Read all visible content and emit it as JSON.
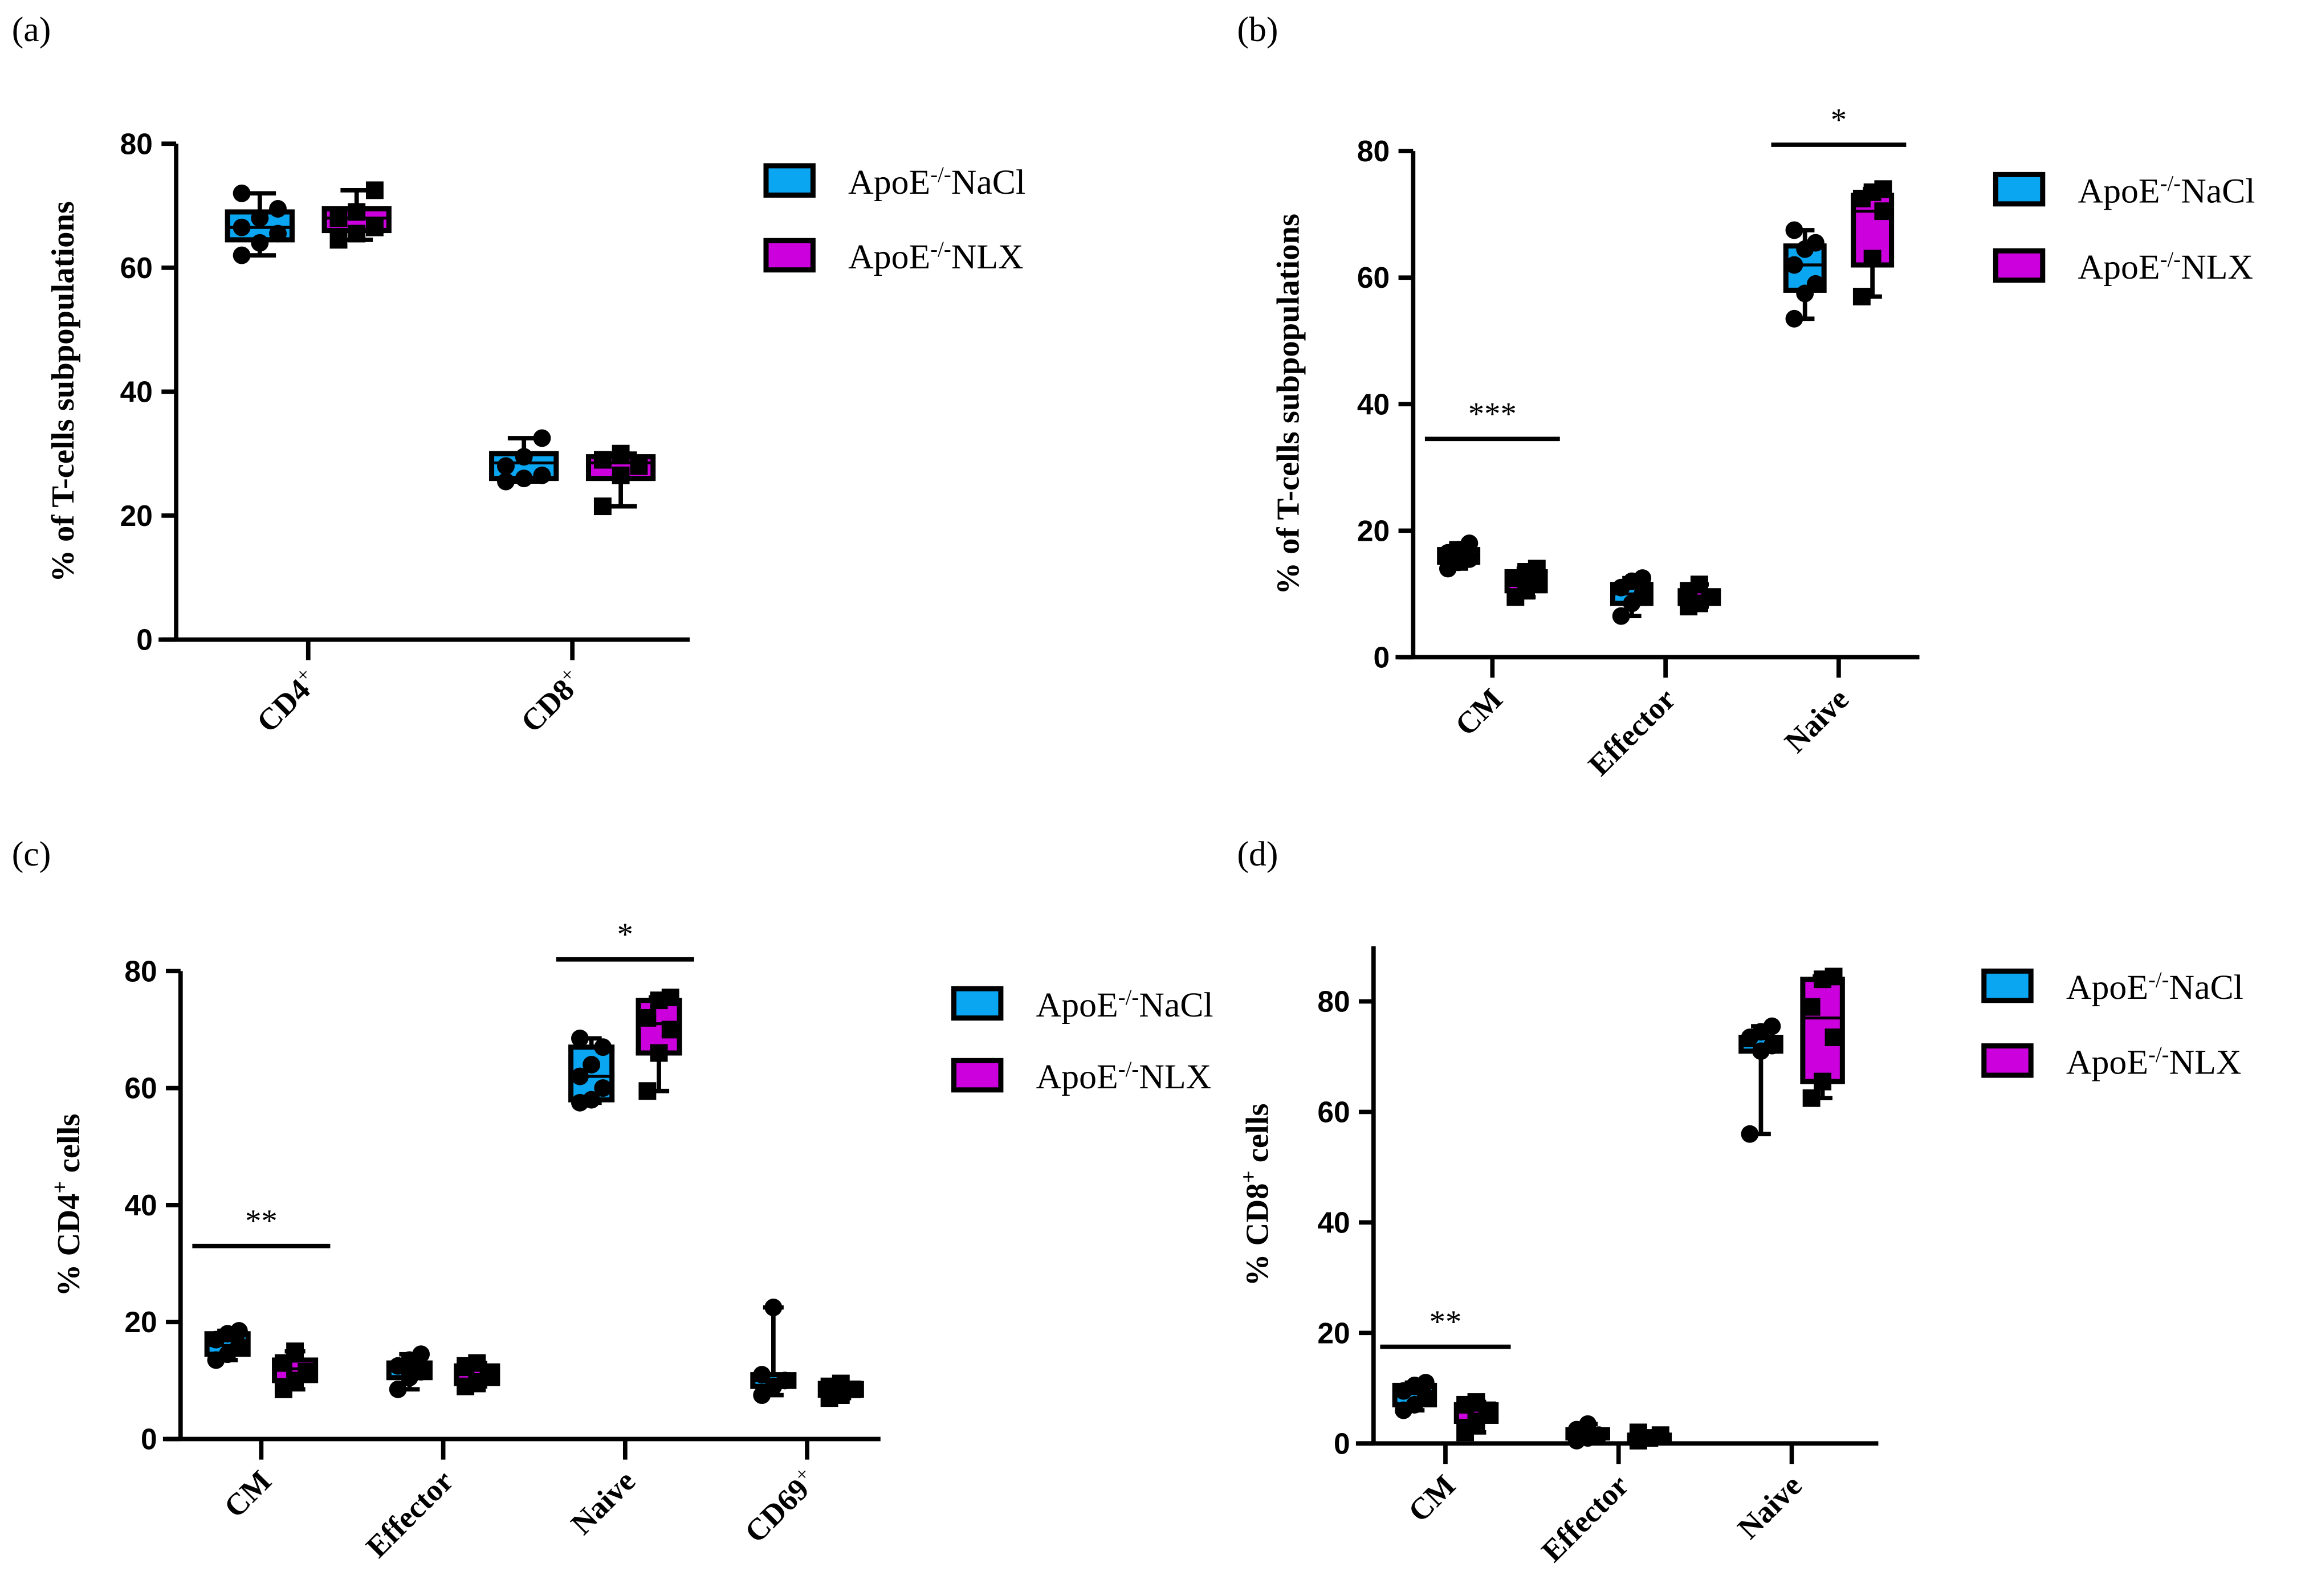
{
  "colors": {
    "NaCl": "#0aa6f2",
    "NLX": "#cc00dd"
  },
  "chart_data": [
    {
      "type": "box",
      "panel_label": "(a)",
      "ylabel": [
        {
          "t": "% of T-cells subpopulations"
        }
      ],
      "ylim": [
        0,
        80
      ],
      "yticks": [
        0,
        20,
        40,
        60,
        80
      ],
      "categories": [
        {
          "name": "CD4",
          "sup": "+"
        },
        {
          "name": "CD8",
          "sup": "+"
        }
      ],
      "legend": [
        {
          "base": "ApoE",
          "sup": "-/-",
          "rest": "NaCl"
        },
        {
          "base": "ApoE",
          "sup": "-/-",
          "rest": "NLX"
        }
      ],
      "series": [
        {
          "name": "ApoE-/-NaCl",
          "boxes": [
            {
              "min": 62,
              "q1": 64.5,
              "median": 66.5,
              "q3": 69,
              "max": 72,
              "points": [
                62,
                64,
                65.5,
                66.5,
                68,
                69.5,
                72
              ]
            },
            {
              "min": 25.5,
              "q1": 26,
              "median": 28.5,
              "q3": 30,
              "max": 32.5,
              "points": [
                25.5,
                26,
                26.5,
                28,
                29.5,
                32.5
              ]
            }
          ]
        },
        {
          "name": "ApoE-/-NLX",
          "boxes": [
            {
              "min": 64.5,
              "q1": 66,
              "median": 68,
              "q3": 69.5,
              "max": 72.5,
              "points": [
                64.5,
                65.5,
                66.5,
                68,
                69,
                72.5
              ]
            },
            {
              "min": 21.5,
              "q1": 26,
              "median": 28.5,
              "q3": 29.5,
              "max": 30,
              "points": [
                21.5,
                26.5,
                28,
                29,
                30
              ]
            }
          ]
        }
      ],
      "significance": []
    },
    {
      "type": "box",
      "panel_label": "(b)",
      "ylabel": [
        {
          "t": "% of T-cells subpopulations"
        }
      ],
      "ylim": [
        0,
        80
      ],
      "yticks": [
        0,
        20,
        40,
        60,
        80
      ],
      "categories": [
        {
          "name": "CM"
        },
        {
          "name": "Effector"
        },
        {
          "name": "Naive"
        }
      ],
      "legend": [
        {
          "base": "ApoE",
          "sup": "-/-",
          "rest": "NaCl"
        },
        {
          "base": "ApoE",
          "sup": "-/-",
          "rest": "NLX"
        }
      ],
      "series": [
        {
          "name": "ApoE-/-NaCl",
          "boxes": [
            {
              "min": 14,
              "q1": 15,
              "median": 15.5,
              "q3": 17,
              "max": 18,
              "points": [
                14,
                15,
                15.5,
                16.5,
                17,
                18
              ]
            },
            {
              "min": 6.5,
              "q1": 8.5,
              "median": 10,
              "q3": 11.5,
              "max": 12.5,
              "points": [
                6.5,
                8.5,
                10,
                11,
                12,
                12.5
              ]
            },
            {
              "min": 53.5,
              "q1": 58,
              "median": 62,
              "q3": 65,
              "max": 67.5,
              "points": [
                53.5,
                57.5,
                59,
                62,
                64.5,
                65.5,
                67.5
              ]
            }
          ]
        },
        {
          "name": "ApoE-/-NLX",
          "boxes": [
            {
              "min": 9.5,
              "q1": 10.5,
              "median": 12,
              "q3": 13.5,
              "max": 14,
              "points": [
                9.5,
                10.5,
                11.5,
                12.5,
                13.5,
                14
              ]
            },
            {
              "min": 8,
              "q1": 8.5,
              "median": 9.5,
              "q3": 10.5,
              "max": 11.5,
              "points": [
                8,
                8.5,
                9.5,
                10.5,
                11.5
              ]
            },
            {
              "min": 57,
              "q1": 62,
              "median": 70.5,
              "q3": 73,
              "max": 74,
              "points": [
                57,
                63,
                70.5,
                72.5,
                73.5,
                74
              ]
            }
          ]
        }
      ],
      "significance": [
        {
          "from": 0,
          "label": "***",
          "y": 34.5
        },
        {
          "from": 2,
          "label": "*",
          "y": 81
        }
      ]
    },
    {
      "type": "box",
      "panel_label": "(c)",
      "ylabel": [
        {
          "t": "% CD4"
        },
        {
          "t": "+",
          "sup": true
        },
        {
          "t": " cells"
        }
      ],
      "ylim": [
        0,
        80
      ],
      "yticks": [
        0,
        20,
        40,
        60,
        80
      ],
      "categories": [
        {
          "name": "CM"
        },
        {
          "name": "Effector"
        },
        {
          "name": "Naive"
        },
        {
          "name": "CD69",
          "sup": "+"
        }
      ],
      "legend": [
        {
          "base": "ApoE",
          "sup": "-/-",
          "rest": "NaCl"
        },
        {
          "base": "ApoE",
          "sup": "-/-",
          "rest": "NLX"
        }
      ],
      "series": [
        {
          "name": "ApoE-/-NaCl",
          "boxes": [
            {
              "min": 13.5,
              "q1": 14.5,
              "median": 16,
              "q3": 18,
              "max": 18.5,
              "points": [
                13.5,
                14.5,
                16,
                17,
                18,
                18.5
              ]
            },
            {
              "min": 8.5,
              "q1": 10.5,
              "median": 12,
              "q3": 13,
              "max": 14.5,
              "points": [
                8.5,
                10.5,
                11.5,
                12.5,
                13.5,
                14.5
              ]
            },
            {
              "min": 57.5,
              "q1": 58,
              "median": 62,
              "q3": 67,
              "max": 68.5,
              "points": [
                57.5,
                58,
                60,
                62,
                64,
                67,
                68.5
              ]
            },
            {
              "min": 7.5,
              "q1": 9,
              "median": 10,
              "q3": 11,
              "max": 22.5,
              "points": [
                7.5,
                9,
                10,
                11,
                22.5
              ]
            }
          ]
        },
        {
          "name": "ApoE-/-NLX",
          "boxes": [
            {
              "min": 8.5,
              "q1": 10,
              "median": 12,
              "q3": 13.5,
              "max": 15,
              "points": [
                8.5,
                10,
                11.5,
                13,
                15
              ]
            },
            {
              "min": 9,
              "q1": 9.5,
              "median": 11,
              "q3": 12.5,
              "max": 13,
              "points": [
                9,
                9.5,
                11,
                12.5,
                13
              ]
            },
            {
              "min": 59.5,
              "q1": 66,
              "median": 71,
              "q3": 75,
              "max": 75.5,
              "points": [
                59.5,
                66,
                70,
                72,
                75,
                75.5
              ]
            },
            {
              "min": 7,
              "q1": 7.5,
              "median": 8.5,
              "q3": 9.5,
              "max": 9.5,
              "points": [
                7,
                7.5,
                8.5,
                9,
                9.5
              ]
            }
          ]
        }
      ],
      "significance": [
        {
          "from": 0,
          "label": "**",
          "y": 33
        },
        {
          "from": 2,
          "label": "*",
          "y": 82
        }
      ]
    },
    {
      "type": "box",
      "panel_label": "(d)",
      "ylabel": [
        {
          "t": "% CD8"
        },
        {
          "t": "+",
          "sup": true
        },
        {
          "t": " cells"
        }
      ],
      "ylim": [
        0,
        90
      ],
      "yticks": [
        0,
        20,
        40,
        60,
        80
      ],
      "categories": [
        {
          "name": "CM"
        },
        {
          "name": "Effector"
        },
        {
          "name": "Naive"
        }
      ],
      "legend": [
        {
          "base": "ApoE",
          "sup": "-/-",
          "rest": "NaCl"
        },
        {
          "base": "ApoE",
          "sup": "-/-",
          "rest": "NLX"
        }
      ],
      "series": [
        {
          "name": "ApoE-/-NaCl",
          "boxes": [
            {
              "min": 6,
              "q1": 7,
              "median": 9,
              "q3": 10.5,
              "max": 11,
              "points": [
                6,
                7,
                8.5,
                9.5,
                10.5,
                11
              ]
            },
            {
              "min": 0.5,
              "q1": 1,
              "median": 1.5,
              "q3": 2.5,
              "max": 3.5,
              "points": [
                0.5,
                1,
                1.5,
                2.5,
                3.5
              ]
            },
            {
              "min": 56,
              "q1": 71,
              "median": 72,
              "q3": 73.5,
              "max": 75.5,
              "points": [
                56,
                71,
                72,
                73.5,
                74.5,
                75.5
              ]
            }
          ]
        },
        {
          "name": "ApoE-/-NLX",
          "boxes": [
            {
              "min": 2,
              "q1": 4,
              "median": 6,
              "q3": 7,
              "max": 7.5,
              "points": [
                2,
                4,
                6,
                7,
                7.5
              ]
            },
            {
              "min": 0.5,
              "q1": 0.5,
              "median": 1,
              "q3": 1.5,
              "max": 2,
              "points": [
                0.5,
                1,
                1.5,
                2
              ]
            },
            {
              "min": 62.5,
              "q1": 65.5,
              "median": 77,
              "q3": 84,
              "max": 84.5,
              "points": [
                62.5,
                65.5,
                73.5,
                79,
                84,
                84.5
              ]
            }
          ]
        }
      ],
      "significance": [
        {
          "from": 0,
          "label": "**",
          "y": 17.5
        }
      ]
    }
  ]
}
